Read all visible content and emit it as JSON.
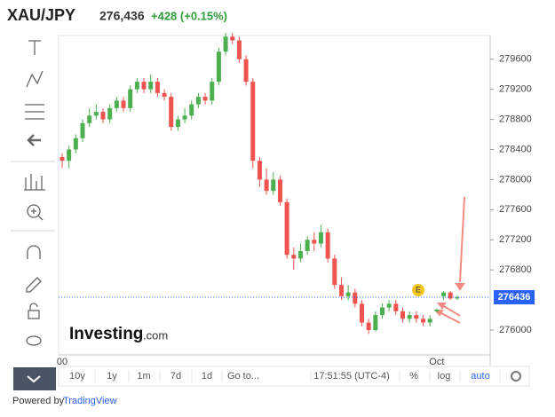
{
  "chart_data": {
    "type": "candlestick",
    "title": "XAU/JPY",
    "last_price": "276,436",
    "change": "+428 (+0.15%)",
    "categories": [
      "00",
      null,
      null,
      null,
      null,
      null,
      null,
      null,
      null,
      null,
      null,
      null,
      null,
      null,
      null,
      null,
      null,
      null,
      null,
      null,
      null,
      null,
      null,
      null,
      null,
      null,
      null,
      null,
      null,
      null,
      null,
      null,
      null,
      null,
      null,
      null,
      null,
      null,
      null,
      null,
      null,
      null,
      null,
      null,
      null,
      null,
      null,
      null,
      null,
      null,
      null,
      null,
      null,
      null,
      null,
      "Oct",
      null,
      null,
      null
    ],
    "open": [
      278300,
      278250,
      278400,
      278550,
      278750,
      278850,
      278900,
      278800,
      278950,
      279050,
      278950,
      279200,
      279300,
      279200,
      279300,
      279150,
      279100,
      278700,
      278800,
      278850,
      279000,
      279100,
      279050,
      279300,
      279700,
      279900,
      279850,
      279600,
      279300,
      278250,
      278000,
      277850,
      278000,
      277700,
      277000,
      276950,
      277050,
      277200,
      277150,
      277300,
      276950,
      276600,
      276450,
      276500,
      276350,
      276100,
      276000,
      276200,
      276300,
      276350,
      276250,
      276150,
      276200,
      276150,
      276100,
      276250,
      276450,
      276500,
      276420
    ],
    "close": [
      278250,
      278400,
      278550,
      278750,
      278850,
      278900,
      278800,
      278950,
      279050,
      278950,
      279200,
      279300,
      279200,
      279300,
      279150,
      279100,
      278700,
      278800,
      278850,
      279000,
      279100,
      279050,
      279300,
      279700,
      279900,
      279850,
      279600,
      279300,
      278250,
      278000,
      277850,
      278000,
      277700,
      277000,
      276950,
      277050,
      277200,
      277150,
      277300,
      276950,
      276600,
      276450,
      276500,
      276350,
      276100,
      276000,
      276200,
      276300,
      276350,
      276250,
      276150,
      276200,
      276150,
      276100,
      276150,
      276270,
      276500,
      276420,
      276436
    ],
    "high": [
      278350,
      278450,
      278600,
      278800,
      278950,
      279000,
      278950,
      279000,
      279100,
      279100,
      279250,
      279350,
      279350,
      279400,
      279350,
      279200,
      279150,
      278850,
      278950,
      279050,
      279150,
      279150,
      279350,
      279750,
      279950,
      279950,
      279900,
      279650,
      279350,
      278300,
      278150,
      278100,
      278050,
      277750,
      277100,
      277150,
      277250,
      277300,
      277400,
      277350,
      277000,
      276700,
      276600,
      276550,
      276400,
      276150,
      276250,
      276350,
      276400,
      276400,
      276300,
      276250,
      276250,
      276200,
      276200,
      276290,
      276520,
      276520,
      276460
    ],
    "low": [
      278150,
      278150,
      278350,
      278500,
      278700,
      278800,
      278750,
      278750,
      278900,
      278900,
      278900,
      279150,
      279150,
      279150,
      279100,
      279050,
      278650,
      278650,
      278750,
      278800,
      278950,
      279000,
      279000,
      279250,
      279650,
      279800,
      279550,
      279250,
      278150,
      277900,
      277800,
      277800,
      277650,
      276950,
      276800,
      276900,
      277000,
      277050,
      277100,
      276900,
      276550,
      276400,
      276400,
      276300,
      276050,
      275950,
      275980,
      276150,
      276250,
      276200,
      276100,
      276100,
      276100,
      276050,
      276050,
      276230,
      276400,
      276400,
      276400
    ],
    "up_color": "#4caf50",
    "down_color": "#ef5350",
    "current_price": 276436,
    "current_color": "#2962ff",
    "ylim": [
      275670,
      279915
    ],
    "yticks": [
      276000,
      276800,
      277200,
      277600,
      278000,
      278400,
      278800,
      279200,
      279600
    ],
    "event_marker": "E",
    "logo": [
      "Investing",
      ".com"
    ],
    "toolbar": [
      "10y",
      "1y",
      "1m",
      "7d",
      "1d",
      "Go to...",
      "17:51:55 (UTC-4)",
      "%",
      "log",
      "auto"
    ],
    "footer": [
      "Powered by",
      "TradingView"
    ]
  }
}
